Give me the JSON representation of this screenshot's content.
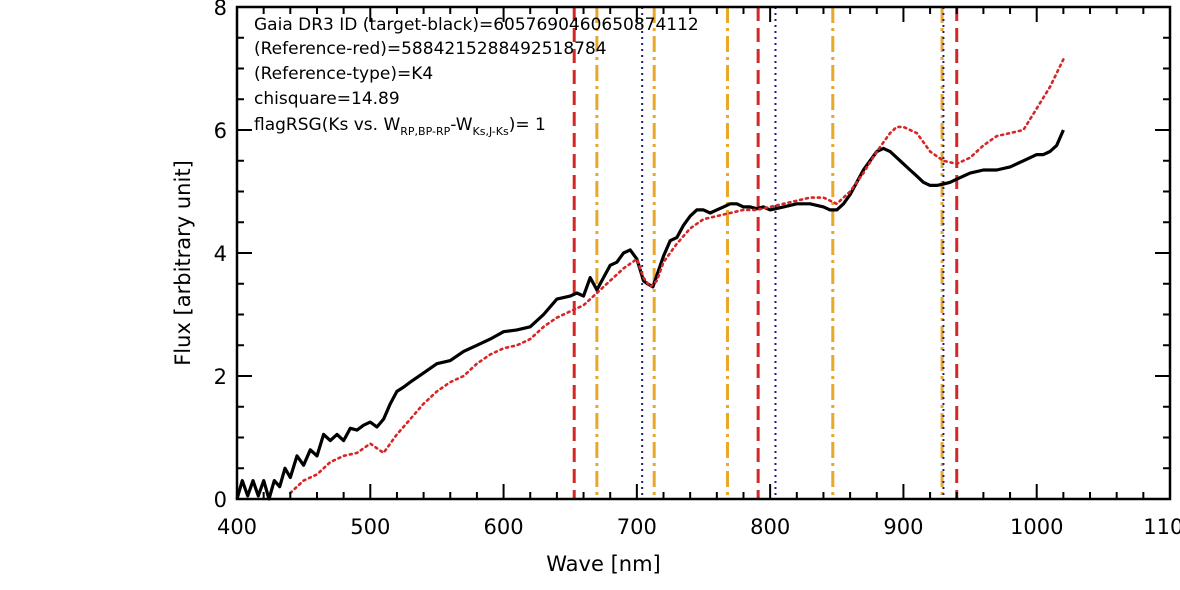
{
  "chart_data": {
    "type": "line",
    "xlabel": "Wave [nm]",
    "ylabel": "Flux [arbitrary unit]",
    "xlim": [
      400,
      1100
    ],
    "ylim": [
      0,
      8
    ],
    "x_ticks": [
      "400",
      "500",
      "600",
      "700",
      "800",
      "900",
      "1000",
      "1100"
    ],
    "y_ticks": [
      "0",
      "2",
      "4",
      "6",
      "8"
    ],
    "annotations": [
      "Gaia DR3 ID (target-black)=6057690460650874112",
      "(Reference-red)=5884215288492518784",
      "(Reference-type)=K4",
      "chisquare=14.89"
    ],
    "flag_annotation": {
      "prefix": "flagRSG(Ks vs. W",
      "sub1": "RP,BP-RP",
      "mid": "-W",
      "sub2": "Ks,J-Ks",
      "suffix": ")= 1"
    },
    "series": [
      {
        "color": "#000000",
        "style": "solid",
        "x": [
          400,
          404,
          408,
          412,
          416,
          420,
          424,
          428,
          432,
          436,
          440,
          445,
          450,
          455,
          460,
          465,
          470,
          475,
          480,
          485,
          490,
          495,
          500,
          505,
          510,
          515,
          520,
          525,
          530,
          540,
          550,
          560,
          570,
          580,
          590,
          600,
          610,
          620,
          630,
          640,
          650,
          655,
          660,
          665,
          670,
          675,
          680,
          685,
          690,
          695,
          700,
          705,
          708,
          712,
          716,
          720,
          725,
          730,
          735,
          740,
          745,
          750,
          755,
          760,
          765,
          770,
          775,
          780,
          785,
          790,
          795,
          800,
          810,
          820,
          830,
          840,
          845,
          850,
          855,
          860,
          870,
          880,
          885,
          890,
          895,
          900,
          905,
          910,
          915,
          920,
          925,
          930,
          935,
          940,
          950,
          960,
          970,
          980,
          990,
          1000,
          1005,
          1010,
          1015,
          1020
        ],
        "y": [
          0.0,
          0.3,
          0.05,
          0.3,
          0.05,
          0.3,
          0.0,
          0.3,
          0.2,
          0.5,
          0.35,
          0.7,
          0.55,
          0.8,
          0.7,
          1.05,
          0.95,
          1.05,
          0.95,
          1.15,
          1.12,
          1.2,
          1.25,
          1.17,
          1.3,
          1.55,
          1.75,
          1.82,
          1.9,
          2.05,
          2.2,
          2.25,
          2.4,
          2.5,
          2.6,
          2.72,
          2.75,
          2.8,
          3.0,
          3.25,
          3.3,
          3.35,
          3.3,
          3.6,
          3.4,
          3.6,
          3.8,
          3.85,
          4.0,
          4.05,
          3.9,
          3.55,
          3.5,
          3.45,
          3.7,
          3.95,
          4.2,
          4.25,
          4.45,
          4.6,
          4.7,
          4.7,
          4.65,
          4.7,
          4.75,
          4.8,
          4.8,
          4.75,
          4.75,
          4.72,
          4.75,
          4.7,
          4.75,
          4.8,
          4.8,
          4.75,
          4.7,
          4.7,
          4.8,
          4.95,
          5.35,
          5.65,
          5.7,
          5.65,
          5.55,
          5.45,
          5.35,
          5.25,
          5.15,
          5.1,
          5.1,
          5.12,
          5.15,
          5.2,
          5.3,
          5.35,
          5.35,
          5.4,
          5.5,
          5.6,
          5.6,
          5.65,
          5.75,
          6.0
        ]
      },
      {
        "color": "#d62728",
        "style": "dotted",
        "x": [
          440,
          450,
          460,
          470,
          480,
          490,
          500,
          510,
          520,
          530,
          540,
          550,
          560,
          570,
          580,
          590,
          600,
          610,
          620,
          630,
          640,
          650,
          660,
          670,
          680,
          690,
          700,
          705,
          710,
          715,
          720,
          730,
          740,
          750,
          760,
          770,
          780,
          790,
          800,
          810,
          820,
          830,
          840,
          850,
          860,
          870,
          880,
          890,
          895,
          900,
          910,
          920,
          930,
          940,
          950,
          960,
          970,
          980,
          990,
          1000,
          1010,
          1020
        ],
        "y": [
          0.1,
          0.3,
          0.4,
          0.6,
          0.7,
          0.75,
          0.9,
          0.75,
          1.05,
          1.3,
          1.55,
          1.75,
          1.9,
          2.0,
          2.2,
          2.35,
          2.45,
          2.5,
          2.6,
          2.8,
          2.95,
          3.05,
          3.15,
          3.35,
          3.55,
          3.75,
          3.9,
          3.6,
          3.45,
          3.55,
          3.85,
          4.15,
          4.4,
          4.55,
          4.6,
          4.65,
          4.7,
          4.7,
          4.75,
          4.8,
          4.85,
          4.9,
          4.9,
          4.8,
          5.0,
          5.3,
          5.65,
          5.95,
          6.05,
          6.05,
          5.95,
          5.65,
          5.5,
          5.45,
          5.55,
          5.75,
          5.9,
          5.95,
          6.0,
          6.35,
          6.7,
          7.15
        ]
      }
    ],
    "vertical_lines": [
      {
        "x": 653,
        "color": "#d62728",
        "style": "dashed"
      },
      {
        "x": 791,
        "color": "#d62728",
        "style": "dashed"
      },
      {
        "x": 940,
        "color": "#d62728",
        "style": "dashed"
      },
      {
        "x": 670,
        "color": "#e8a82a",
        "style": "dashdot"
      },
      {
        "x": 713,
        "color": "#e8a82a",
        "style": "dashdot"
      },
      {
        "x": 768,
        "color": "#e8a82a",
        "style": "dashdot"
      },
      {
        "x": 847,
        "color": "#e8a82a",
        "style": "dashdot"
      },
      {
        "x": 929,
        "color": "#e8a82a",
        "style": "dashdot"
      },
      {
        "x": 704,
        "color": "#1f1f7a",
        "style": "dotted"
      },
      {
        "x": 804,
        "color": "#1f1f7a",
        "style": "dotted"
      },
      {
        "x": 930,
        "color": "#1f1f7a",
        "style": "dotted"
      }
    ]
  }
}
